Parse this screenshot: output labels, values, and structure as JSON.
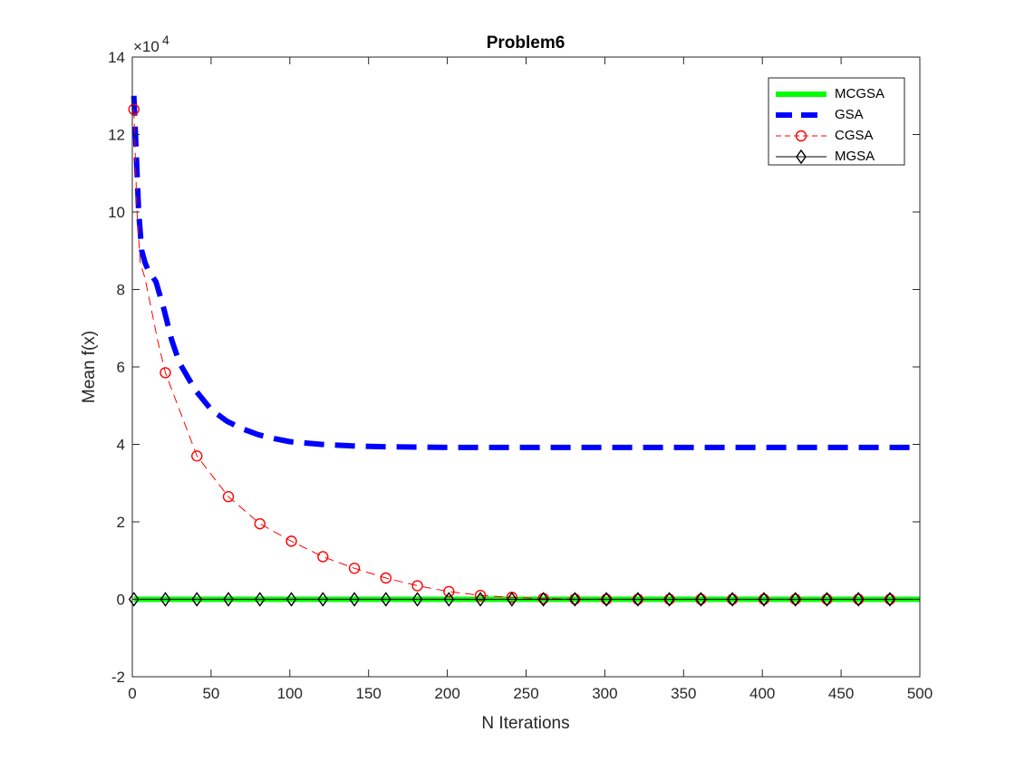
{
  "chart_data": {
    "type": "line",
    "title": "Problem6",
    "xlabel": "N Iterations",
    "ylabel": "Mean f(x)",
    "y_exponent_label": "×10",
    "y_exponent_power": "4",
    "xlim": [
      0,
      500
    ],
    "ylim": [
      -20000,
      140000
    ],
    "xticks": [
      0,
      50,
      100,
      150,
      200,
      250,
      300,
      350,
      400,
      450,
      500
    ],
    "yticks": [
      -20000,
      0,
      20000,
      40000,
      60000,
      80000,
      100000,
      120000,
      140000
    ],
    "xtick_labels": [
      "0",
      "50",
      "100",
      "150",
      "200",
      "250",
      "300",
      "350",
      "400",
      "450",
      "500"
    ],
    "ytick_labels": [
      "-2",
      "0",
      "2",
      "4",
      "6",
      "8",
      "10",
      "12",
      "14"
    ],
    "grid": false,
    "legend_position": "top-right",
    "series": [
      {
        "name": "MCGSA",
        "color": "#00ff00",
        "style": "solid",
        "x": [
          1,
          100,
          200,
          300,
          400,
          500
        ],
        "y": [
          0,
          0,
          0,
          0,
          0,
          0
        ]
      },
      {
        "name": "GSA",
        "color": "#0000ff",
        "style": "dashed",
        "x": [
          1,
          2,
          4,
          6,
          8,
          10,
          15,
          20,
          25,
          30,
          40,
          50,
          60,
          70,
          80,
          90,
          100,
          120,
          140,
          160,
          180,
          200,
          250,
          300,
          350,
          400,
          450,
          500
        ],
        "y": [
          130000,
          120000,
          100000,
          90000,
          87000,
          85000,
          82000,
          75000,
          67000,
          61000,
          54000,
          49000,
          46000,
          44000,
          42500,
          41500,
          40700,
          40000,
          39600,
          39400,
          39300,
          39200,
          39200,
          39200,
          39200,
          39200,
          39200,
          39200
        ]
      },
      {
        "name": "CGSA",
        "color": "#ff0000",
        "style": "dashed",
        "marker": "circle",
        "x": [
          1,
          3,
          5,
          8,
          12,
          16,
          21,
          41,
          61,
          81,
          101,
          121,
          141,
          161,
          181,
          201,
          221,
          241,
          261,
          281,
          301,
          321,
          341,
          361,
          381,
          401,
          421,
          441,
          461,
          481,
          500
        ],
        "y": [
          126500,
          100000,
          87000,
          83000,
          75000,
          67000,
          58500,
          37000,
          26500,
          19500,
          15000,
          11000,
          8000,
          5500,
          3500,
          2000,
          1000,
          500,
          200,
          50,
          0,
          0,
          0,
          0,
          0,
          0,
          0,
          0,
          0,
          0,
          0
        ],
        "marker_x": [
          1,
          21,
          41,
          61,
          81,
          101,
          121,
          141,
          161,
          181,
          201,
          221,
          241,
          261,
          281,
          301,
          321,
          341,
          361,
          381,
          401,
          421,
          441,
          461,
          481
        ]
      },
      {
        "name": "MGSA",
        "color": "#000000",
        "style": "solid",
        "marker": "diamond",
        "x": [
          1,
          21,
          41,
          61,
          81,
          101,
          121,
          141,
          161,
          181,
          201,
          221,
          241,
          261,
          281,
          301,
          321,
          341,
          361,
          381,
          401,
          421,
          441,
          461,
          481,
          500
        ],
        "y": [
          0,
          0,
          0,
          0,
          0,
          0,
          0,
          0,
          0,
          0,
          0,
          0,
          0,
          0,
          0,
          0,
          0,
          0,
          0,
          0,
          0,
          0,
          0,
          0,
          0,
          0
        ],
        "marker_x": [
          1,
          21,
          41,
          61,
          81,
          101,
          121,
          141,
          161,
          181,
          201,
          221,
          241,
          261,
          281,
          301,
          321,
          341,
          361,
          381,
          401,
          421,
          441,
          461,
          481
        ]
      }
    ]
  }
}
